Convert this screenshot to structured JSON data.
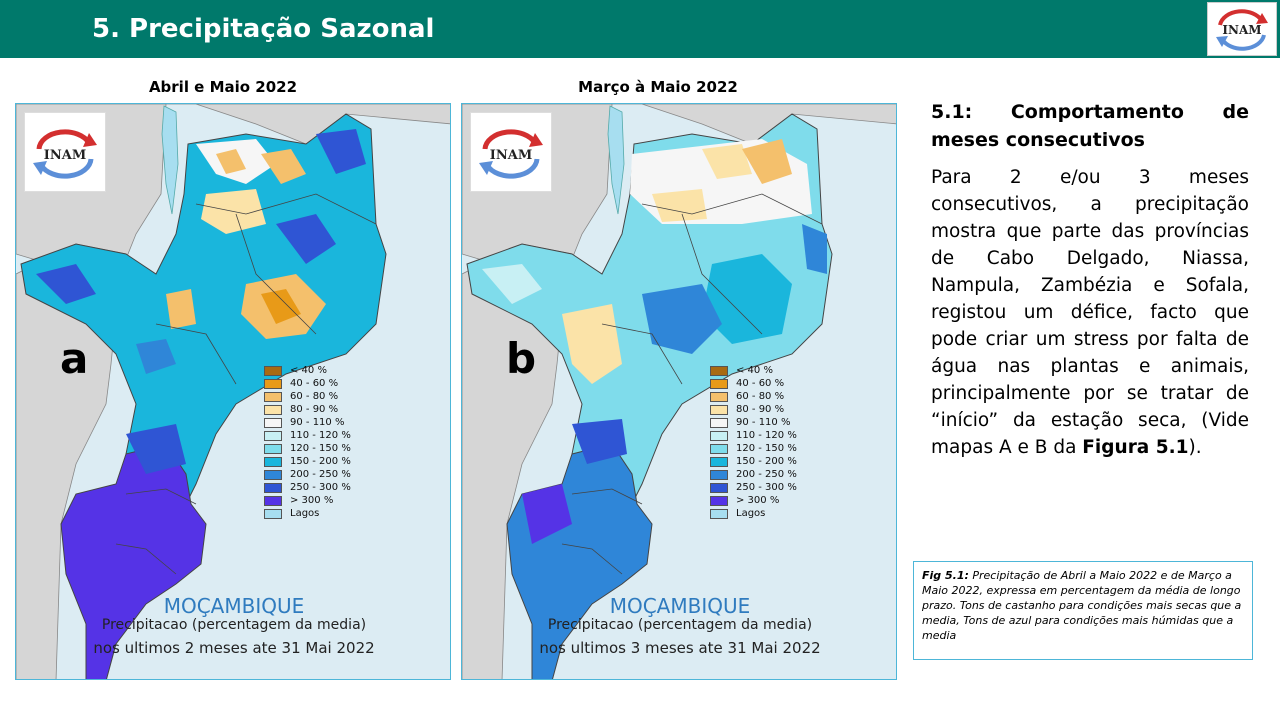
{
  "header": {
    "title": "5. Precipitação Sazonal",
    "logo_text": "INAM",
    "color": "#00796b"
  },
  "maps": [
    {
      "title": "Abril e Maio 2022",
      "letter": "a",
      "logo_text": "INAM",
      "country": "MOÇAMBIQUE",
      "subtitle": "Precipitacao (percentagem da media)",
      "period": "nos ultimos 2 meses ate 31 Mai 2022"
    },
    {
      "title": "Março à Maio 2022",
      "letter": "b",
      "logo_text": "INAM",
      "country": "MOÇAMBIQUE",
      "subtitle": "Precipitacao (percentagem da media)",
      "period": "nos ultimos 3 meses ate 31 Mai 2022"
    }
  ],
  "legend": [
    {
      "label": "< 40 %",
      "color": "#a86a12"
    },
    {
      "label": "40 - 60 %",
      "color": "#e89a18"
    },
    {
      "label": "60 - 80 %",
      "color": "#f4c06c"
    },
    {
      "label": "80 - 90 %",
      "color": "#fbe3a8"
    },
    {
      "label": "90 - 110 %",
      "color": "#f6f6f6"
    },
    {
      "label": "110 - 120 %",
      "color": "#c8f0f4"
    },
    {
      "label": "120 - 150 %",
      "color": "#7fdceb"
    },
    {
      "label": "150 - 200 %",
      "color": "#1ab6dc"
    },
    {
      "label": "200 - 250 %",
      "color": "#2f86d8"
    },
    {
      "label": "250 - 300 %",
      "color": "#2f55d4"
    },
    {
      "label": "> 300 %",
      "color": "#5533e6"
    },
    {
      "label": "Lagos",
      "color": "#a7def0"
    }
  ],
  "section": {
    "heading": "5.1: Comportamento de meses consecutivos",
    "body_main": "Para 2 e/ou 3 meses consecutivos, a precipitação mostra que parte das províncias de Cabo Delgado, Niassa, Nampula, Zambézia e Sofala, registou um défice, facto que pode criar um stress por falta de água nas plantas e animais, principalmente por se tratar de “início” da estação seca, (Vide mapas A e B da ",
    "body_bold": "Figura 5.1",
    "body_end": ")."
  },
  "caption": {
    "label": "Fig 5.1:",
    "text": " Precipitação de Abril a Maio 2022 e de Março a Maio 2022, expressa em percentagem da média de longo prazo. Tons de castanho para condições mais secas que a media, Tons de azul para condições mais húmidas que a media"
  }
}
